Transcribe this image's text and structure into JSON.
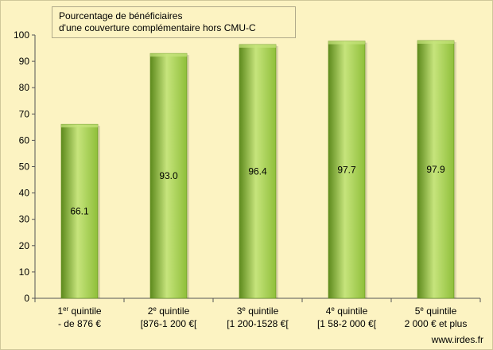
{
  "chart_data": {
    "type": "bar",
    "title_lines": [
      "Pourcentage de bénéficiaires",
      "d'une couverture complémentaire hors CMU-C"
    ],
    "categories": [
      {
        "line1_main": "1",
        "line1_sup": "er",
        "line1_rest": " quintile",
        "line2": "- de 876 €"
      },
      {
        "line1_main": "2",
        "line1_sup": "e",
        "line1_rest": " quintile",
        "line2": "[876-1 200 €["
      },
      {
        "line1_main": "3",
        "line1_sup": "e",
        "line1_rest": " quintile",
        "line2": "[1 200-1528  €["
      },
      {
        "line1_main": "4",
        "line1_sup": "e",
        "line1_rest": " quintile",
        "line2": "[1 58-2 000 €["
      },
      {
        "line1_main": "5",
        "line1_sup": "e",
        "line1_rest": " quintile",
        "line2": "2 000 € et plus"
      }
    ],
    "values": [
      66.1,
      93.0,
      96.4,
      97.7,
      97.9
    ],
    "value_labels": [
      "66.1",
      "93.0",
      "96.4",
      "97.7",
      "97.9"
    ],
    "ylim": [
      0,
      100
    ],
    "yticks": [
      0,
      10,
      20,
      30,
      40,
      50,
      60,
      70,
      80,
      90,
      100
    ],
    "bar_color": "#8fbf3a",
    "bar_highlight": "#c6e47c",
    "bar_shadow": "#5d8a1c"
  },
  "credit": "www.irdes.fr"
}
